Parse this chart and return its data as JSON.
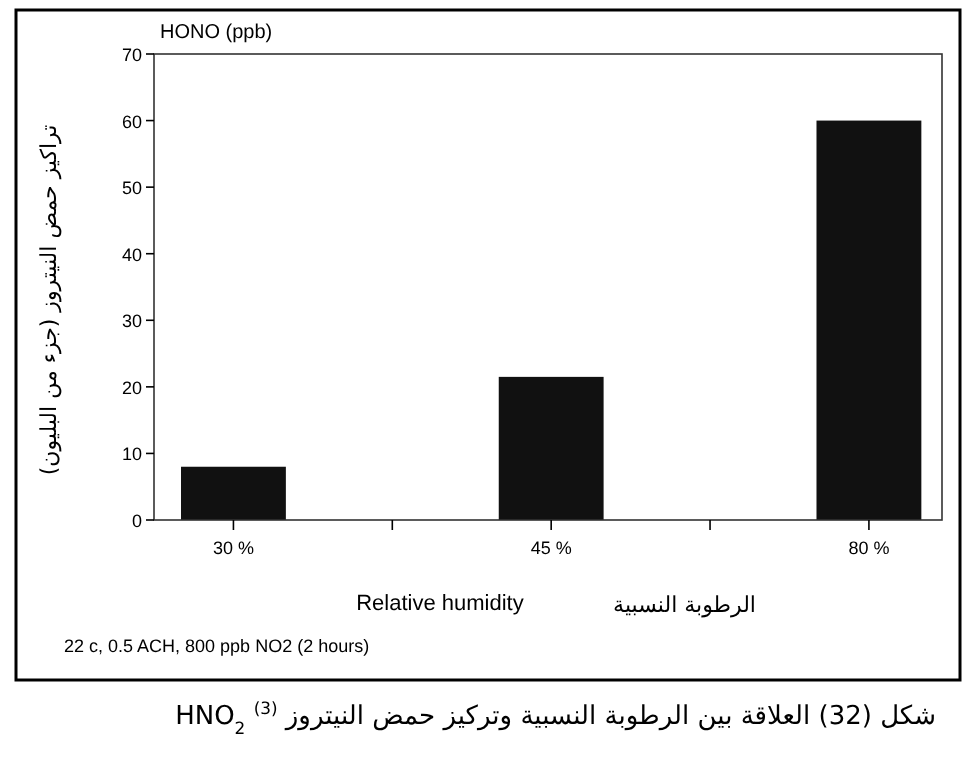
{
  "chart_data": {
    "type": "bar",
    "ylabel": "HONO (ppb)",
    "xlabel": "Relative humidity",
    "categories": [
      "30 %",
      "45 %",
      "80 %"
    ],
    "values": [
      8,
      21.5,
      60
    ],
    "color": "#111111",
    "ylim": [
      0,
      70
    ],
    "yticks": [
      0,
      10,
      20,
      30,
      40,
      50,
      60,
      70
    ],
    "annotations": [
      "الرطوبة النسبية",
      "تراكيز حمض النيتروز (جزء من البليون)",
      "22 c, 0.5 ACH, 800 ppb NO2 (2 hours)",
      "شكل (32) العلاقة بين الرطوبة النسبية وتركيز حمض النيتروز HNO$_{2}$ $^{(3)}$"
    ]
  }
}
